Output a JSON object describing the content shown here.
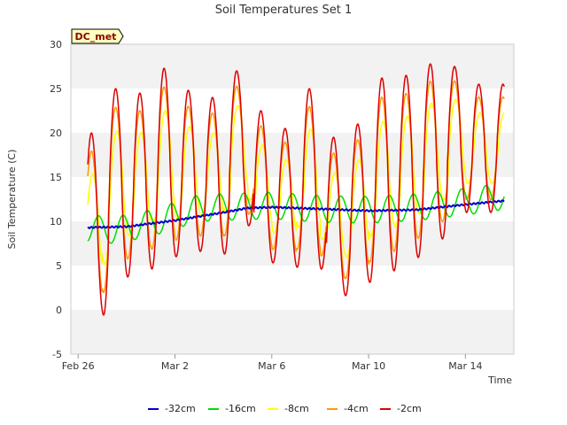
{
  "chart_data": {
    "type": "line",
    "title": "Soil Temperatures Set 1",
    "xlabel": "Time",
    "ylabel": "Soil Temperature (C)",
    "badge": "DC_met",
    "x_unit": "days since Feb 26",
    "xlim": [
      -0.3,
      18
    ],
    "ylim": [
      -5,
      30
    ],
    "y_ticks": [
      -5,
      0,
      5,
      10,
      15,
      20,
      25,
      30
    ],
    "x_ticks": [
      {
        "label": "Feb 26",
        "day": 0
      },
      {
        "label": "Mar 2",
        "day": 4
      },
      {
        "label": "Mar 6",
        "day": 8
      },
      {
        "label": "Mar 10",
        "day": 12
      },
      {
        "label": "Mar 14",
        "day": 16
      }
    ],
    "grid": "horizontal bands",
    "legend_position": "bottom",
    "daily_peaks_2cm": [
      20.0,
      25.0,
      24.5,
      27.3,
      24.8,
      24.0,
      27.0,
      22.5,
      20.5,
      25.0,
      19.5,
      21.0,
      26.2,
      26.5,
      27.8,
      27.5,
      25.5
    ],
    "daily_minima_2cm": [
      2.7,
      -0.6,
      3.7,
      4.6,
      6.0,
      6.6,
      6.3,
      9.5,
      5.3,
      4.8,
      4.6,
      1.6,
      3.1,
      4.4,
      5.9,
      8.0,
      11.0
    ],
    "series": [
      {
        "name": "-32cm",
        "color": "#0000cc",
        "points": [
          [
            0.4,
            9.3
          ],
          [
            2.0,
            9.4
          ],
          [
            4.0,
            10.1
          ],
          [
            6.0,
            11.0
          ],
          [
            7.0,
            11.5
          ],
          [
            8.0,
            11.6
          ],
          [
            10.0,
            11.4
          ],
          [
            12.0,
            11.2
          ],
          [
            14.0,
            11.3
          ],
          [
            16.0,
            11.9
          ],
          [
            17.5,
            12.3
          ]
        ]
      },
      {
        "name": "-16cm",
        "color": "#00dd00",
        "center": [
          [
            0.4,
            9.2
          ],
          [
            1.5,
            9.0
          ],
          [
            3.0,
            9.8
          ],
          [
            5.0,
            11.5
          ],
          [
            8.0,
            11.8
          ],
          [
            10.0,
            11.4
          ],
          [
            12.0,
            11.3
          ],
          [
            14.0,
            11.6
          ],
          [
            16.0,
            12.2
          ],
          [
            17.5,
            12.8
          ]
        ],
        "amplitude": 1.5,
        "phase": 0.85
      },
      {
        "name": "-8cm",
        "color": "#ffff00",
        "damping": 0.55,
        "phase": 0.6
      },
      {
        "name": "-4cm",
        "color": "#ff9900",
        "damping": 0.8,
        "phase": 0.55
      },
      {
        "name": "-2cm",
        "color": "#dd0000",
        "damping": 1.0,
        "phase": 0.55
      }
    ]
  }
}
